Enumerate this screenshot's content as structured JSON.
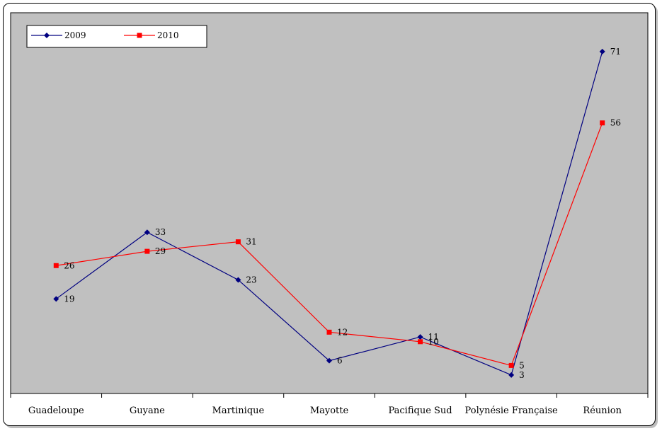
{
  "chart_data": {
    "type": "line",
    "categories": [
      "Guadeloupe",
      "Guyane",
      "Martinique",
      "Mayotte",
      "Pacifique Sud",
      "Polynésie Française",
      "Réunion"
    ],
    "series": [
      {
        "name": "2009",
        "values": [
          19,
          33,
          23,
          6,
          11,
          3,
          71
        ],
        "color": "#000080",
        "marker": "diamond"
      },
      {
        "name": "2010",
        "values": [
          26,
          29,
          31,
          12,
          10,
          5,
          56
        ],
        "color": "#ff0000",
        "marker": "square"
      }
    ],
    "ylim": [
      0,
      75
    ],
    "plot_background": "#c0c0c0",
    "grid": false,
    "legend_position": "top-left",
    "data_labels": true
  }
}
